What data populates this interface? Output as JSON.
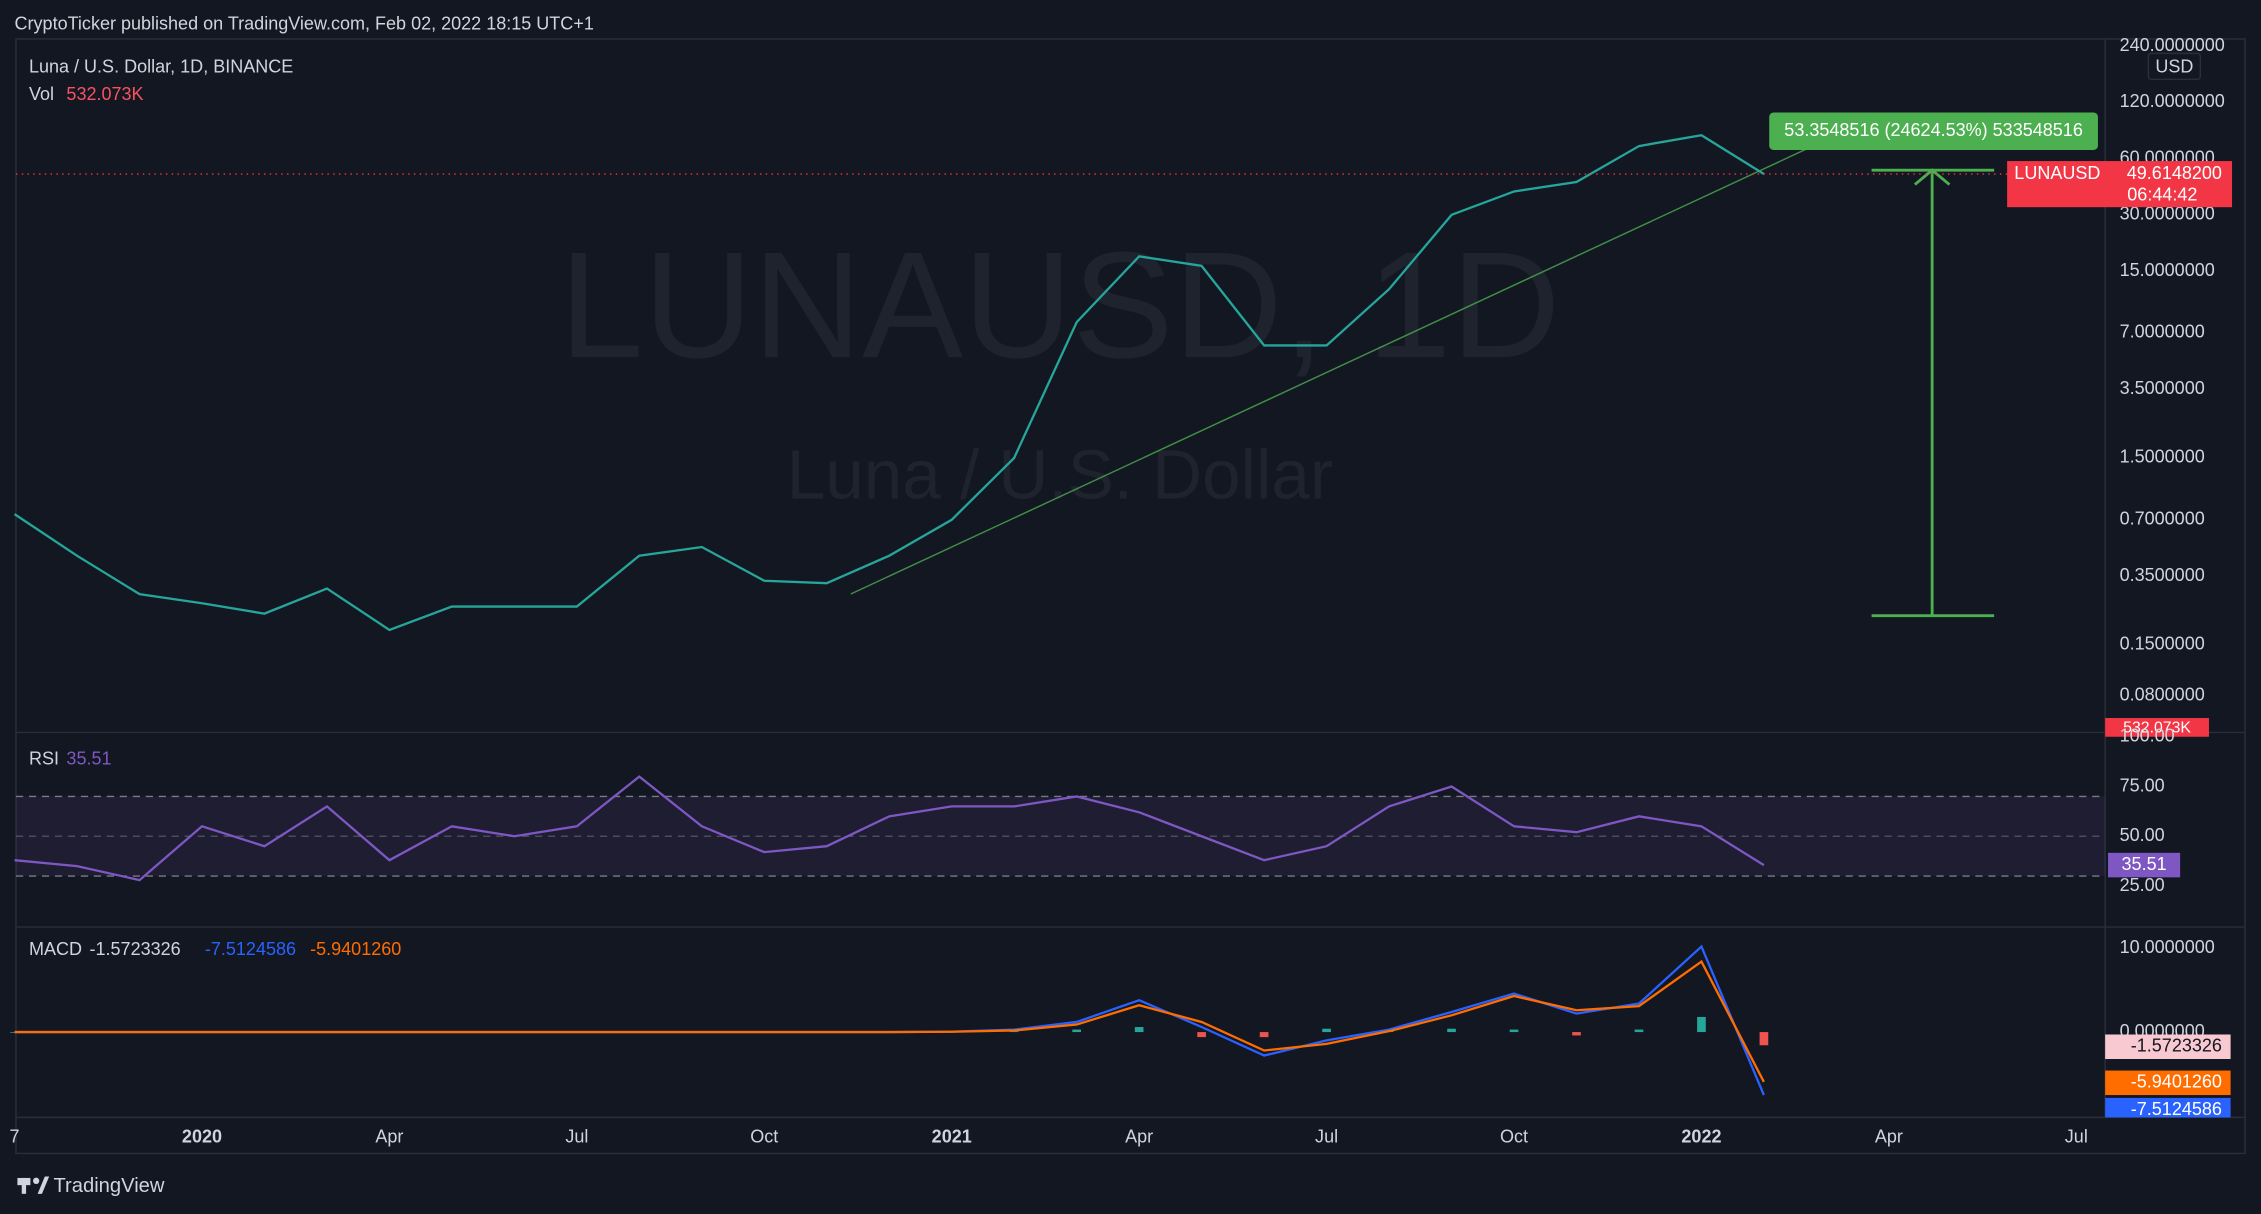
{
  "header": {
    "publisher": "CryptoTicker published on TradingView.com, Feb 02, 2022 18:15 UTC+1"
  },
  "watermark": {
    "symbol": "LUNAUSD, 1D",
    "description": "Luna / U.S. Dollar"
  },
  "x_axis": {
    "ticks": [
      {
        "value": "2019-10",
        "label": "7"
      },
      {
        "value": "2020-01",
        "label": "2020"
      },
      {
        "value": "2020-04",
        "label": "Apr"
      },
      {
        "value": "2020-07",
        "label": "Jul"
      },
      {
        "value": "2020-10",
        "label": "Oct"
      },
      {
        "value": "2021-01",
        "label": "2021"
      },
      {
        "value": "2021-04",
        "label": "Apr"
      },
      {
        "value": "2021-07",
        "label": "Jul"
      },
      {
        "value": "2021-10",
        "label": "Oct"
      },
      {
        "value": "2022-01",
        "label": "2022"
      },
      {
        "value": "2022-04",
        "label": "Apr"
      },
      {
        "value": "2022-07",
        "label": "Jul"
      }
    ]
  },
  "footer": {
    "brand": "TradingView"
  },
  "chart_data": [
    {
      "type": "line",
      "title": "Luna / U.S. Dollar, 1D, BINANCE",
      "log_scale": true,
      "x": [
        "2019-10",
        "2019-11",
        "2019-12",
        "2020-01",
        "2020-02",
        "2020-03",
        "2020-04",
        "2020-05",
        "2020-06",
        "2020-07",
        "2020-08",
        "2020-09",
        "2020-10",
        "2020-11",
        "2020-12",
        "2021-01",
        "2021-02",
        "2021-03",
        "2021-04",
        "2021-05",
        "2021-06",
        "2021-07",
        "2021-08",
        "2021-09",
        "2021-10",
        "2021-11",
        "2021-12",
        "2022-01",
        "2022-02"
      ],
      "series": [
        {
          "name": "LUNAUSD",
          "color": "#26a69a",
          "values": [
            0.75,
            0.45,
            0.28,
            0.25,
            0.22,
            0.3,
            0.18,
            0.24,
            0.24,
            0.24,
            0.45,
            0.5,
            0.33,
            0.32,
            0.45,
            0.7,
            1.5,
            8,
            18,
            16,
            6,
            6,
            12,
            30,
            40,
            45,
            70,
            80,
            49.61482
          ],
          "value_labels": [
            null,
            null,
            null,
            null,
            null,
            null,
            null,
            null,
            null,
            null,
            null,
            null,
            null,
            null,
            null,
            null,
            null,
            null,
            null,
            null,
            null,
            null,
            null,
            null,
            null,
            null,
            null,
            null,
            "49.6148200"
          ]
        }
      ],
      "ylim": [
        0.05,
        240
      ],
      "yticks": [
        {
          "value": 240,
          "label": "240.0000000"
        },
        {
          "value": 120,
          "label": "120.0000000"
        },
        {
          "value": 60,
          "label": "60.0000000"
        },
        {
          "value": 30,
          "label": "30.0000000"
        },
        {
          "value": 15,
          "label": "15.0000000"
        },
        {
          "value": 7,
          "label": "7.0000000"
        },
        {
          "value": 3.5,
          "label": "3.5000000"
        },
        {
          "value": 1.5,
          "label": "1.5000000"
        },
        {
          "value": 0.7,
          "label": "0.7000000"
        },
        {
          "value": 0.35,
          "label": "0.3500000"
        },
        {
          "value": 0.15,
          "label": "0.1500000"
        },
        {
          "value": 0.08,
          "label": "0.0800000"
        }
      ],
      "y_unit": "USD",
      "volume_label": "Vol",
      "volume_value": "532.073K",
      "countdown": "06:44:42",
      "annotation": "53.3548516 (24624.53%) 533548516"
    },
    {
      "type": "line",
      "title": "RSI",
      "color": "#7e57c2",
      "x": [
        "2019-10",
        "2019-11",
        "2019-12",
        "2020-01",
        "2020-02",
        "2020-03",
        "2020-04",
        "2020-05",
        "2020-06",
        "2020-07",
        "2020-08",
        "2020-09",
        "2020-10",
        "2020-11",
        "2020-12",
        "2021-01",
        "2021-02",
        "2021-03",
        "2021-04",
        "2021-05",
        "2021-06",
        "2021-07",
        "2021-08",
        "2021-09",
        "2021-10",
        "2021-11",
        "2021-12",
        "2022-01",
        "2022-02"
      ],
      "values": [
        38,
        35,
        28,
        55,
        45,
        65,
        38,
        55,
        50,
        55,
        80,
        55,
        42,
        45,
        60,
        65,
        65,
        70,
        62,
        50,
        38,
        45,
        65,
        75,
        55,
        52,
        60,
        55,
        35.51
      ],
      "ylim": [
        0,
        100
      ],
      "band": [
        30,
        70
      ],
      "yticks": [
        {
          "value": 100,
          "label": "100.00"
        },
        {
          "value": 75,
          "label": "75.00"
        },
        {
          "value": 50,
          "label": "50.00"
        },
        {
          "value": 25,
          "label": "25.00"
        }
      ]
    },
    {
      "type": "line",
      "title": "MACD",
      "x": [
        "2019-10",
        "2019-11",
        "2019-12",
        "2020-01",
        "2020-02",
        "2020-03",
        "2020-04",
        "2020-05",
        "2020-06",
        "2020-07",
        "2020-08",
        "2020-09",
        "2020-10",
        "2020-11",
        "2020-12",
        "2021-01",
        "2021-02",
        "2021-03",
        "2021-04",
        "2021-05",
        "2021-06",
        "2021-07",
        "2021-08",
        "2021-09",
        "2021-10",
        "2021-11",
        "2021-12",
        "2022-01",
        "2022-02"
      ],
      "histogram": {
        "color": "#26a69a",
        "negative_color": "#ef5350",
        "values": [
          0,
          0,
          0,
          0,
          0,
          0,
          0,
          0,
          0,
          0,
          0,
          0,
          0,
          0,
          0,
          0.02,
          0.1,
          0.3,
          0.6,
          -0.6,
          -0.6,
          0.4,
          0.2,
          0.4,
          0.3,
          -0.4,
          0.3,
          1.8,
          -1.5723326
        ],
        "value_labels": [
          null,
          null,
          null,
          null,
          null,
          null,
          null,
          null,
          null,
          null,
          null,
          null,
          null,
          null,
          null,
          null,
          null,
          null,
          null,
          null,
          null,
          null,
          null,
          null,
          null,
          null,
          null,
          null,
          "-1.5723326"
        ]
      },
      "series": [
        {
          "color": "#2962ff",
          "values": [
            0,
            0,
            0,
            0,
            0,
            0,
            0,
            0,
            0,
            0,
            0,
            0,
            0,
            0,
            0,
            0.05,
            0.3,
            1.2,
            3.8,
            0.6,
            -2.8,
            -1.0,
            0.3,
            2.4,
            4.6,
            2.2,
            3.4,
            10.2,
            -7.5124586
          ],
          "value_labels": [
            null,
            null,
            null,
            null,
            null,
            null,
            null,
            null,
            null,
            null,
            null,
            null,
            null,
            null,
            null,
            null,
            null,
            null,
            null,
            null,
            null,
            null,
            null,
            null,
            null,
            null,
            null,
            null,
            "-7.5124586"
          ]
        },
        {
          "color": "#ff6d00",
          "values": [
            0,
            0,
            0,
            0,
            0,
            0,
            0,
            0,
            0,
            0,
            0,
            0,
            0,
            0,
            0,
            0.03,
            0.2,
            0.9,
            3.2,
            1.2,
            -2.2,
            -1.4,
            0.1,
            2.0,
            4.3,
            2.6,
            3.1,
            8.4,
            -5.940126
          ],
          "value_labels": [
            null,
            null,
            null,
            null,
            null,
            null,
            null,
            null,
            null,
            null,
            null,
            null,
            null,
            null,
            null,
            null,
            null,
            null,
            null,
            null,
            null,
            null,
            null,
            null,
            null,
            null,
            null,
            null,
            "-5.9401260"
          ]
        }
      ],
      "ylim": [
        -10,
        12
      ],
      "yticks": [
        {
          "value": 10,
          "label": "10.0000000"
        },
        {
          "value": 0,
          "label": "0.0000000"
        }
      ]
    }
  ]
}
